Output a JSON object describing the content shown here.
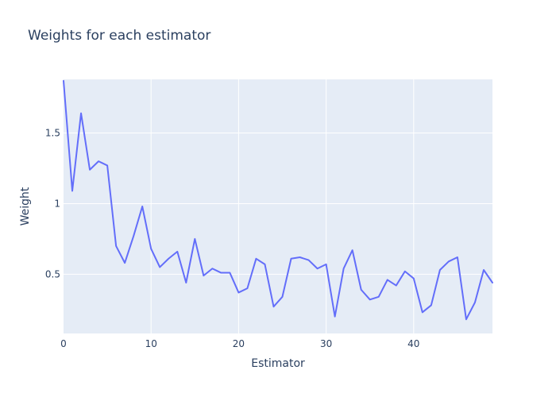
{
  "chart_data": {
    "type": "line",
    "title": "Weights for each estimator",
    "xlabel": "Estimator",
    "ylabel": "Weight",
    "xlim": [
      0,
      49
    ],
    "ylim": [
      0.08,
      1.88
    ],
    "x_ticks": [
      0,
      10,
      20,
      30,
      40
    ],
    "x_tick_labels": [
      "0",
      "10",
      "20",
      "30",
      "40"
    ],
    "y_ticks": [
      0.5,
      1,
      1.5
    ],
    "y_tick_labels": [
      "0.5",
      "1",
      "1.5"
    ],
    "grid": true,
    "legend": "none",
    "colors": {
      "plot_background": "#e5ecf6",
      "grid": "#ffffff",
      "series": "#636efa",
      "text": "#2a3f5f"
    },
    "x": [
      0,
      1,
      2,
      3,
      4,
      5,
      6,
      7,
      8,
      9,
      10,
      11,
      12,
      13,
      14,
      15,
      16,
      17,
      18,
      19,
      20,
      21,
      22,
      23,
      24,
      25,
      26,
      27,
      28,
      29,
      30,
      31,
      32,
      33,
      34,
      35,
      36,
      37,
      38,
      39,
      40,
      41,
      42,
      43,
      44,
      45,
      46,
      47,
      48,
      49
    ],
    "series": [
      {
        "values": [
          1.87,
          1.09,
          1.64,
          1.24,
          1.3,
          1.27,
          0.7,
          0.58,
          0.77,
          0.98,
          0.68,
          0.55,
          0.61,
          0.66,
          0.44,
          0.75,
          0.49,
          0.54,
          0.51,
          0.51,
          0.37,
          0.4,
          0.61,
          0.57,
          0.27,
          0.34,
          0.61,
          0.62,
          0.6,
          0.54,
          0.57,
          0.2,
          0.54,
          0.67,
          0.39,
          0.32,
          0.34,
          0.46,
          0.42,
          0.52,
          0.47,
          0.23,
          0.28,
          0.53,
          0.59,
          0.62,
          0.18,
          0.3,
          0.53,
          0.44
        ]
      }
    ]
  }
}
